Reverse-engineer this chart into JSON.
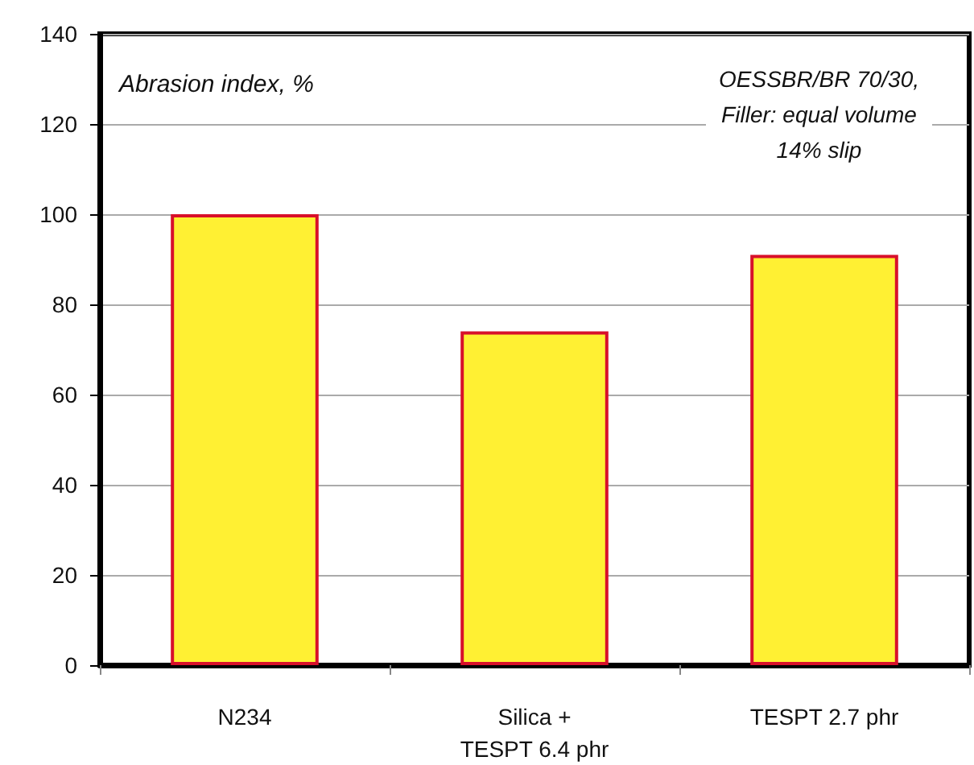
{
  "chart_data": {
    "type": "bar",
    "ylabel": "Abrasion index, %",
    "categories": [
      "N234",
      "Silica +\nTESPT 6.4 phr",
      "TESPT 2.7 phr"
    ],
    "values": [
      100,
      74,
      91
    ],
    "color": "#fff033",
    "ylim": [
      0,
      140
    ],
    "yticks": [
      0,
      20,
      40,
      60,
      80,
      100,
      120,
      140
    ],
    "grid": "y",
    "annotations": [
      "OESSBR/BR 70/30,\nFiller: equal volume\n14% slip"
    ]
  }
}
